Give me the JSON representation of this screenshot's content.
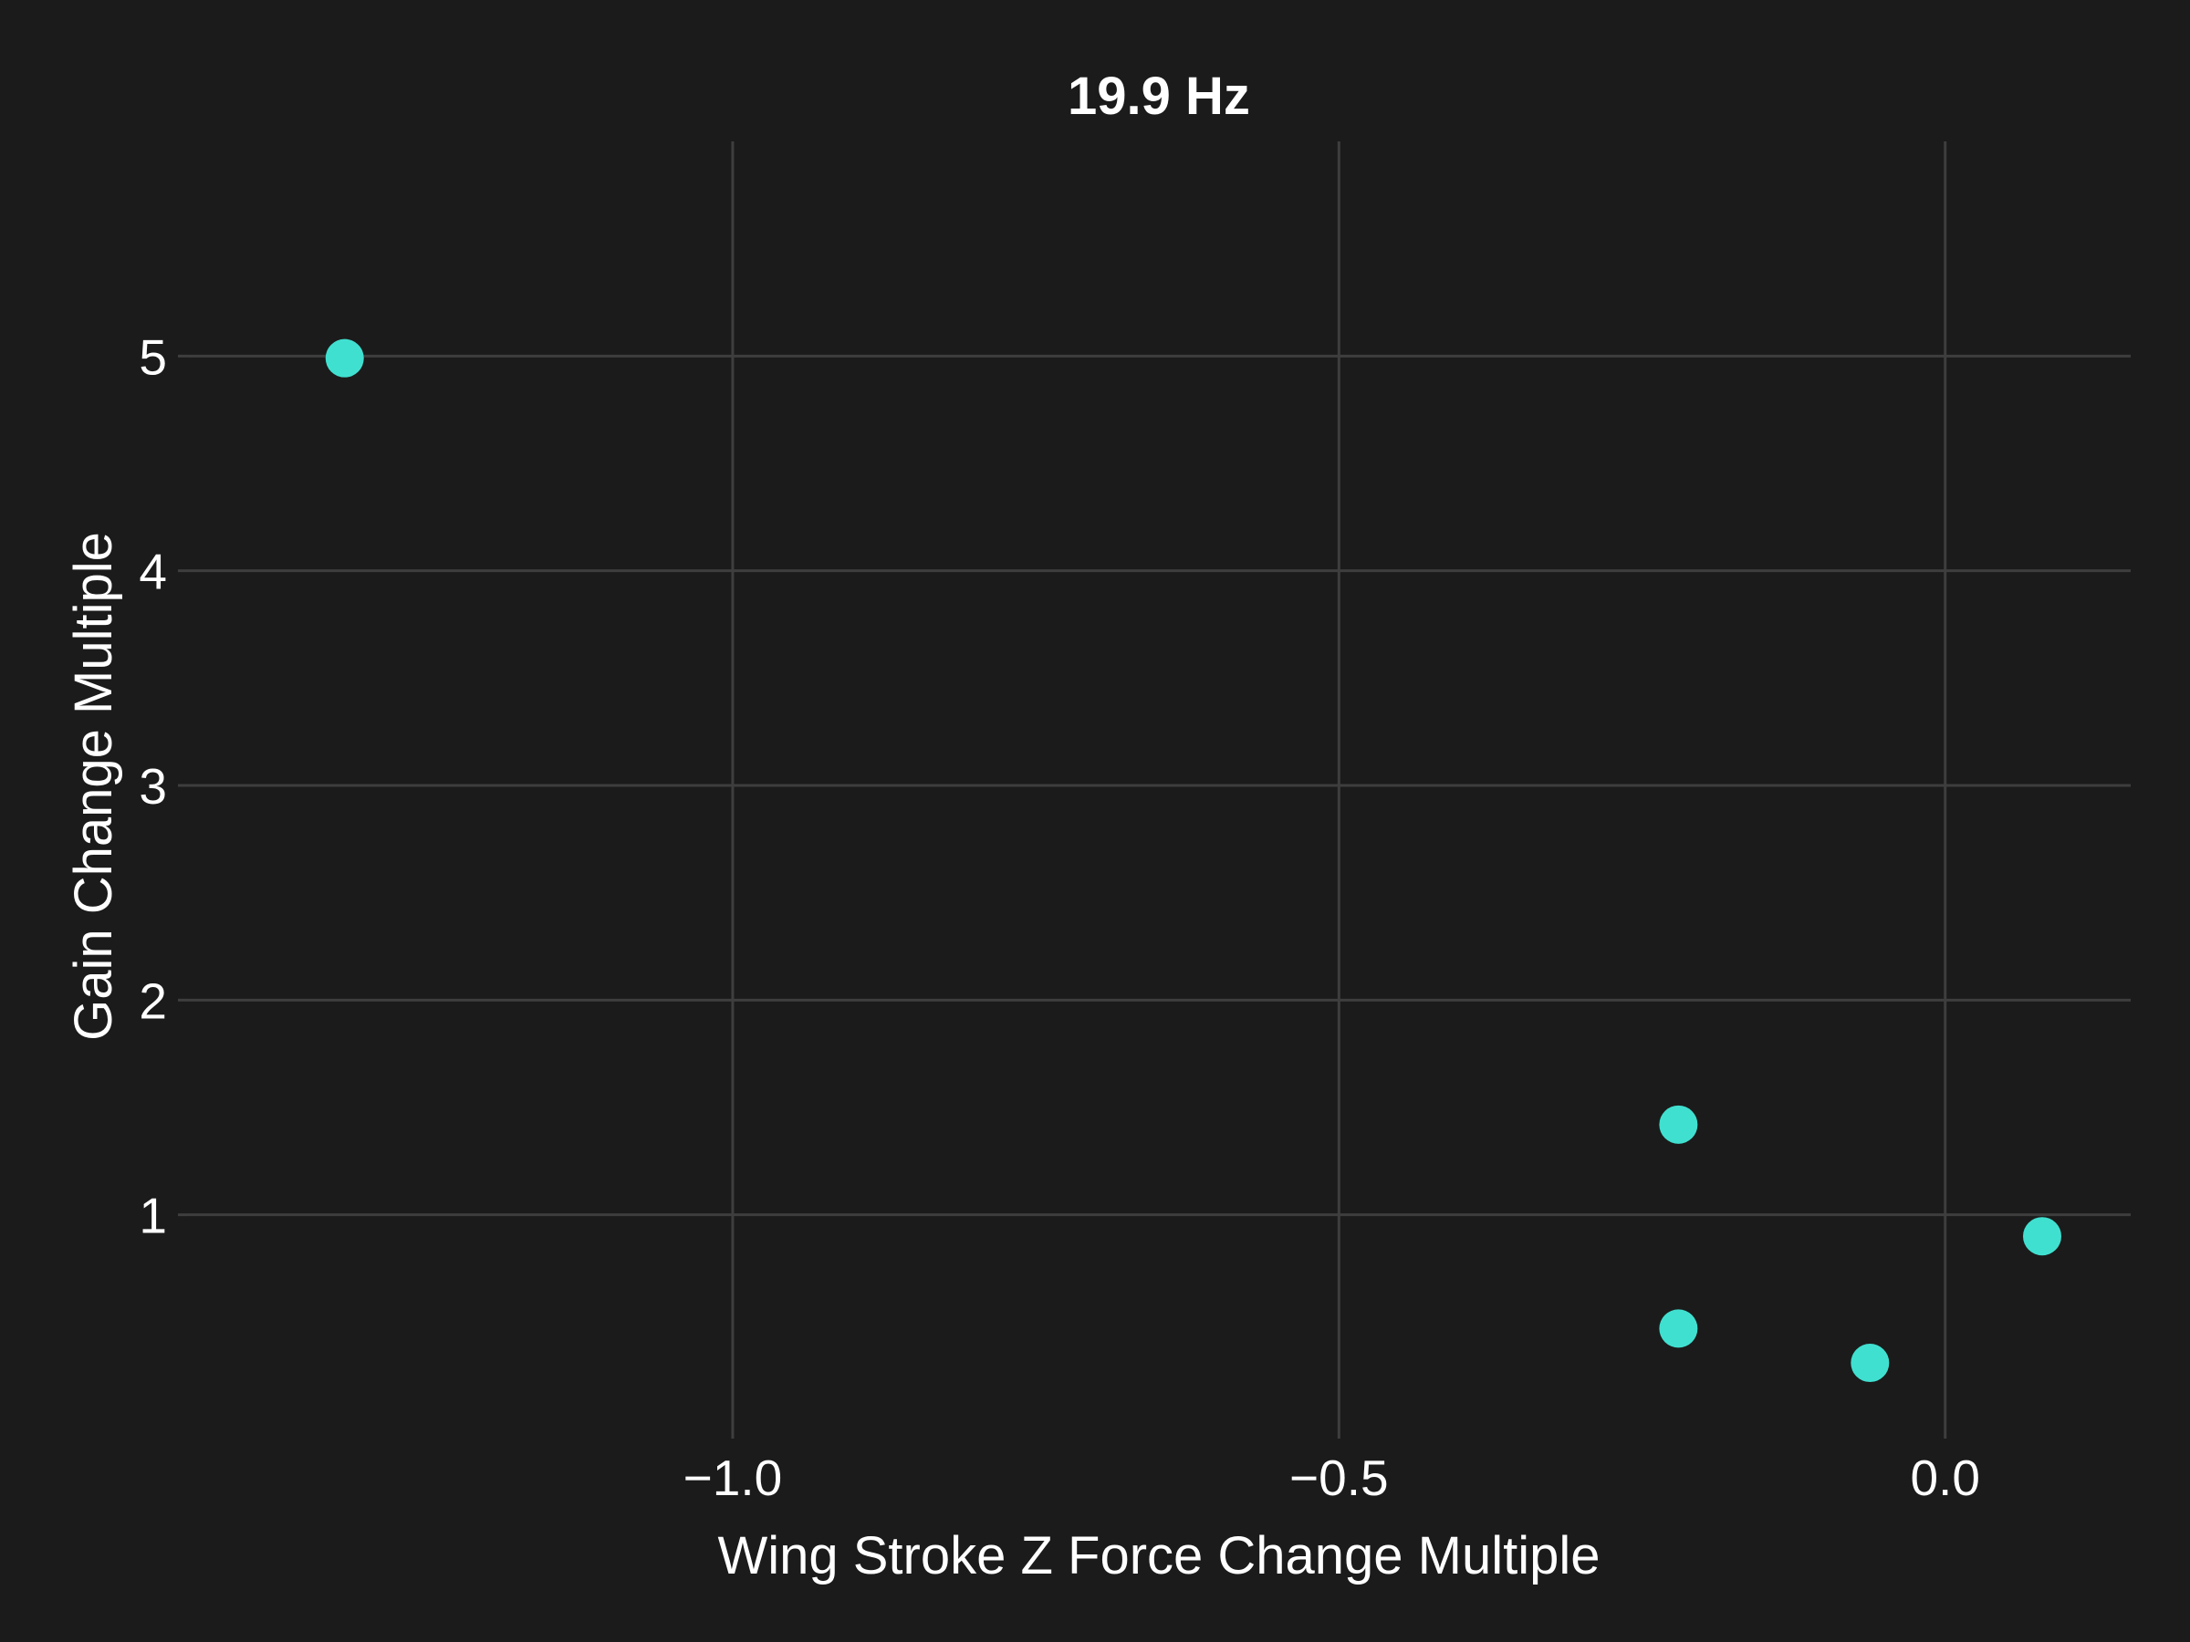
{
  "chart_data": {
    "type": "scatter",
    "title": "19.9 Hz",
    "xlabel": "Wing Stroke Z Force Change Multiple",
    "ylabel": "Gain Change Multiple",
    "xlim": [
      -1.45,
      0.153
    ],
    "ylim": [
      0.0,
      6.0
    ],
    "xticks": [
      {
        "value": -1.0,
        "label": "−1.0"
      },
      {
        "value": -0.5,
        "label": "−0.5"
      },
      {
        "value": 0.0,
        "label": "0.0"
      }
    ],
    "yticks": [
      {
        "value": 1,
        "label": "1"
      },
      {
        "value": 2,
        "label": "2"
      },
      {
        "value": 3,
        "label": "3"
      },
      {
        "value": 4,
        "label": "4"
      },
      {
        "value": 5,
        "label": "5"
      }
    ],
    "grid": true,
    "point_color": "#40e0d0",
    "background_color": "#1b1b1b",
    "points": [
      {
        "x": -1.32,
        "y": 4.99
      },
      {
        "x": -0.22,
        "y": 1.42
      },
      {
        "x": 0.08,
        "y": 0.9
      },
      {
        "x": -0.22,
        "y": 0.47
      },
      {
        "x": -0.062,
        "y": 0.31
      }
    ]
  }
}
